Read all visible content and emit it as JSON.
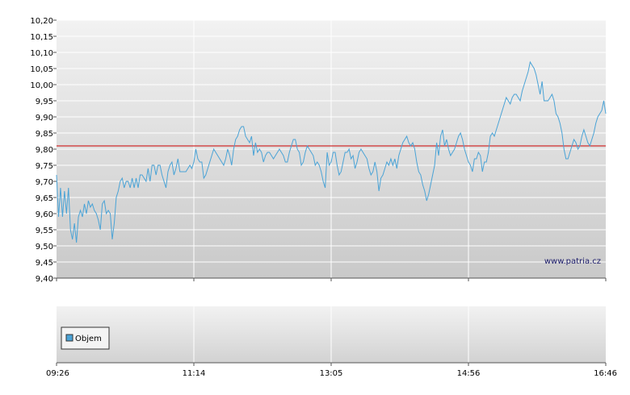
{
  "chart_data": [
    {
      "type": "line",
      "title": "",
      "xlabel": "",
      "ylabel": "",
      "ylim": [
        9.4,
        10.2
      ],
      "y_ticks": [
        "9,40",
        "9,45",
        "9,50",
        "9,55",
        "9,60",
        "9,65",
        "9,70",
        "9,75",
        "9,80",
        "9,85",
        "9,90",
        "9,95",
        "10,00",
        "10,05",
        "10,10",
        "10,15",
        "10,20"
      ],
      "x_ticks": [
        "09:26",
        "11:14",
        "13:05",
        "14:56",
        "16:46"
      ],
      "reference_value": 9.81,
      "reference_color": "#cc0000",
      "line_color": "#4aa3d6",
      "grid": true,
      "watermark": "www.patria.cz",
      "series": [
        {
          "values": [
            9.72,
            9.59,
            9.68,
            9.59,
            9.67,
            9.6,
            9.68,
            9.55,
            9.52,
            9.57,
            9.51,
            9.59,
            9.61,
            9.59,
            9.63,
            9.6,
            9.64,
            9.62,
            9.63,
            9.61,
            9.6,
            9.58,
            9.55,
            9.63,
            9.64,
            9.6,
            9.61,
            9.6,
            9.52,
            9.57,
            9.65,
            9.67,
            9.7,
            9.71,
            9.68,
            9.7,
            9.7,
            9.68,
            9.71,
            9.68,
            9.71,
            9.68,
            9.72,
            9.72,
            9.71,
            9.7,
            9.74,
            9.7,
            9.75,
            9.75,
            9.72,
            9.75,
            9.75,
            9.72,
            9.7,
            9.68,
            9.73,
            9.75,
            9.76,
            9.72,
            9.74,
            9.77,
            9.73,
            9.73,
            9.73,
            9.73,
            9.74,
            9.75,
            9.74,
            9.76,
            9.8,
            9.77,
            9.76,
            9.76,
            9.71,
            9.72,
            9.74,
            9.76,
            9.78,
            9.8,
            9.79,
            9.78,
            9.77,
            9.76,
            9.75,
            9.77,
            9.8,
            9.78,
            9.75,
            9.8,
            9.83,
            9.84,
            9.86,
            9.87,
            9.87,
            9.84,
            9.83,
            9.82,
            9.84,
            9.78,
            9.82,
            9.79,
            9.8,
            9.79,
            9.76,
            9.78,
            9.79,
            9.79,
            9.78,
            9.77,
            9.78,
            9.79,
            9.8,
            9.79,
            9.78,
            9.76,
            9.76,
            9.79,
            9.81,
            9.83,
            9.83,
            9.8,
            9.79,
            9.75,
            9.76,
            9.79,
            9.81,
            9.8,
            9.79,
            9.78,
            9.75,
            9.76,
            9.75,
            9.73,
            9.7,
            9.68,
            9.79,
            9.75,
            9.76,
            9.79,
            9.79,
            9.75,
            9.72,
            9.73,
            9.76,
            9.79,
            9.79,
            9.8,
            9.77,
            9.78,
            9.74,
            9.76,
            9.79,
            9.8,
            9.79,
            9.78,
            9.77,
            9.74,
            9.72,
            9.73,
            9.76,
            9.73,
            9.67,
            9.71,
            9.72,
            9.74,
            9.76,
            9.75,
            9.77,
            9.75,
            9.77,
            9.74,
            9.78,
            9.8,
            9.82,
            9.83,
            9.84,
            9.82,
            9.81,
            9.82,
            9.8,
            9.76,
            9.73,
            9.72,
            9.69,
            9.67,
            9.64,
            9.66,
            9.69,
            9.72,
            9.75,
            9.82,
            9.78,
            9.84,
            9.86,
            9.81,
            9.83,
            9.8,
            9.78,
            9.79,
            9.8,
            9.82,
            9.84,
            9.85,
            9.83,
            9.8,
            9.78,
            9.76,
            9.75,
            9.73,
            9.77,
            9.77,
            9.79,
            9.78,
            9.73,
            9.76,
            9.76,
            9.79,
            9.84,
            9.85,
            9.84,
            9.86,
            9.88,
            9.9,
            9.92,
            9.94,
            9.96,
            9.95,
            9.94,
            9.96,
            9.97,
            9.97,
            9.96,
            9.95,
            9.98,
            10.0,
            10.02,
            10.04,
            10.07,
            10.06,
            10.05,
            10.03,
            10.0,
            9.97,
            10.01,
            9.95,
            9.95,
            9.95,
            9.96,
            9.97,
            9.95,
            9.91,
            9.9,
            9.88,
            9.85,
            9.8,
            9.77,
            9.77,
            9.79,
            9.81,
            9.83,
            9.82,
            9.8,
            9.81,
            9.84,
            9.86,
            9.84,
            9.82,
            9.81,
            9.83,
            9.85,
            9.88,
            9.9,
            9.91,
            9.92,
            9.95,
            9.91
          ]
        }
      ]
    },
    {
      "type": "bar",
      "title": "",
      "legend": {
        "placement": "left",
        "entries": [
          "Objem"
        ]
      },
      "legend_color": "#4aa3d6",
      "x_ticks": [
        "09:26",
        "11:14",
        "13:05",
        "14:56",
        "16:46"
      ],
      "grid": true,
      "series": []
    }
  ]
}
